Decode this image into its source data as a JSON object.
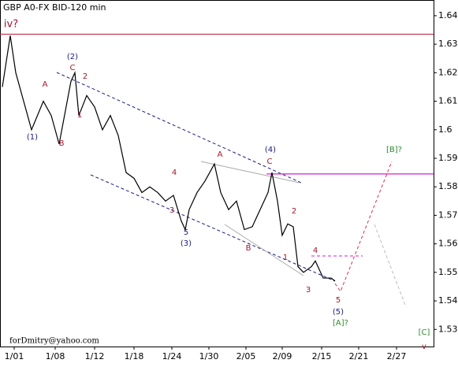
{
  "chart_data": {
    "type": "line",
    "title": "GBP A0-FX BID-120 min",
    "watermark": "forDmitry@yahoo.com",
    "x": [
      0.6,
      2.6,
      4,
      6,
      8,
      11,
      13,
      15,
      18,
      19,
      20,
      22,
      24,
      26,
      28,
      30,
      32,
      34,
      36,
      38,
      40,
      42,
      44,
      46,
      47,
      48,
      50,
      52,
      54.4,
      56,
      58,
      60,
      62,
      64,
      66,
      68,
      69,
      70.4,
      71.6,
      73,
      74.4,
      75.6,
      77,
      79,
      80,
      82,
      84,
      85
    ],
    "series": [
      {
        "name": "GBP A0-FX",
        "color": "#000000",
        "values": [
          1.615,
          1.633,
          1.62,
          1.61,
          1.6,
          1.61,
          1.605,
          1.595,
          1.617,
          1.62,
          1.605,
          1.612,
          1.608,
          1.6,
          1.605,
          1.598,
          1.585,
          1.583,
          1.578,
          1.58,
          1.578,
          1.575,
          1.577,
          1.568,
          1.565,
          1.572,
          1.578,
          1.582,
          1.588,
          1.578,
          1.572,
          1.575,
          1.565,
          1.566,
          1.572,
          1.578,
          1.585,
          1.575,
          1.563,
          1.567,
          1.566,
          1.552,
          1.55,
          1.552,
          1.554,
          1.548,
          1.548,
          1.547
        ]
      }
    ],
    "xlim": [
      0,
      110
    ],
    "xticks": [
      {
        "value": 3.6,
        "label": "1/01"
      },
      {
        "value": 14,
        "label": "1/08"
      },
      {
        "value": 24,
        "label": "1/12"
      },
      {
        "value": 34,
        "label": "1/18"
      },
      {
        "value": 43.6,
        "label": "1/24"
      },
      {
        "value": 53,
        "label": "1/30"
      },
      {
        "value": 62.4,
        "label": "2/05"
      },
      {
        "value": 71.6,
        "label": "2/09"
      },
      {
        "value": 81.6,
        "label": "2/15"
      },
      {
        "value": 91,
        "label": "2/21"
      },
      {
        "value": 100.6,
        "label": "2/27"
      }
    ],
    "ylim": [
      1.524,
      1.6455
    ],
    "yticks": [
      1.53,
      1.54,
      1.55,
      1.56,
      1.57,
      1.58,
      1.59,
      1.6,
      1.61,
      1.62,
      1.63,
      1.64
    ],
    "reference_lines": [
      {
        "value": 1.6335,
        "color": "#c0314a"
      },
      {
        "value": 1.5845,
        "color": "#d020d0"
      }
    ],
    "annotations": [
      {
        "text": "iv?",
        "color": "#a0182c"
      },
      {
        "text": "(2)",
        "color": "#1a1a80"
      },
      {
        "text": "C",
        "color": "#a0182c"
      },
      {
        "text": "2",
        "color": "#a0182c"
      },
      {
        "text": "A",
        "color": "#a0182c"
      },
      {
        "text": "1",
        "color": "#a0182c"
      },
      {
        "text": "(1)",
        "color": "#1a1a80"
      },
      {
        "text": "B",
        "color": "#a0182c"
      },
      {
        "text": "4",
        "color": "#a0182c"
      },
      {
        "text": "3",
        "color": "#a0182c"
      },
      {
        "text": "5",
        "color": "#1a1a80"
      },
      {
        "text": "(3)",
        "color": "#1a1a80"
      },
      {
        "text": "A",
        "color": "#a0182c"
      },
      {
        "text": "(4)",
        "color": "#1a1a80"
      },
      {
        "text": "C",
        "color": "#a0182c"
      },
      {
        "text": "2",
        "color": "#a0182c"
      },
      {
        "text": "B",
        "color": "#a0182c"
      },
      {
        "text": "1",
        "color": "#a0182c"
      },
      {
        "text": "4",
        "color": "#a0182c"
      },
      {
        "text": "3",
        "color": "#a0182c"
      },
      {
        "text": "5",
        "color": "#a0182c"
      },
      {
        "text": "(5)",
        "color": "#1a1a80"
      },
      {
        "text": "[A]?",
        "color": "#2e8b2e"
      },
      {
        "text": "[B]?",
        "color": "#2e8b2e"
      },
      {
        "text": "[C]",
        "color": "#2e8b2e"
      },
      {
        "text": "v",
        "color": "#a0182c"
      }
    ]
  }
}
